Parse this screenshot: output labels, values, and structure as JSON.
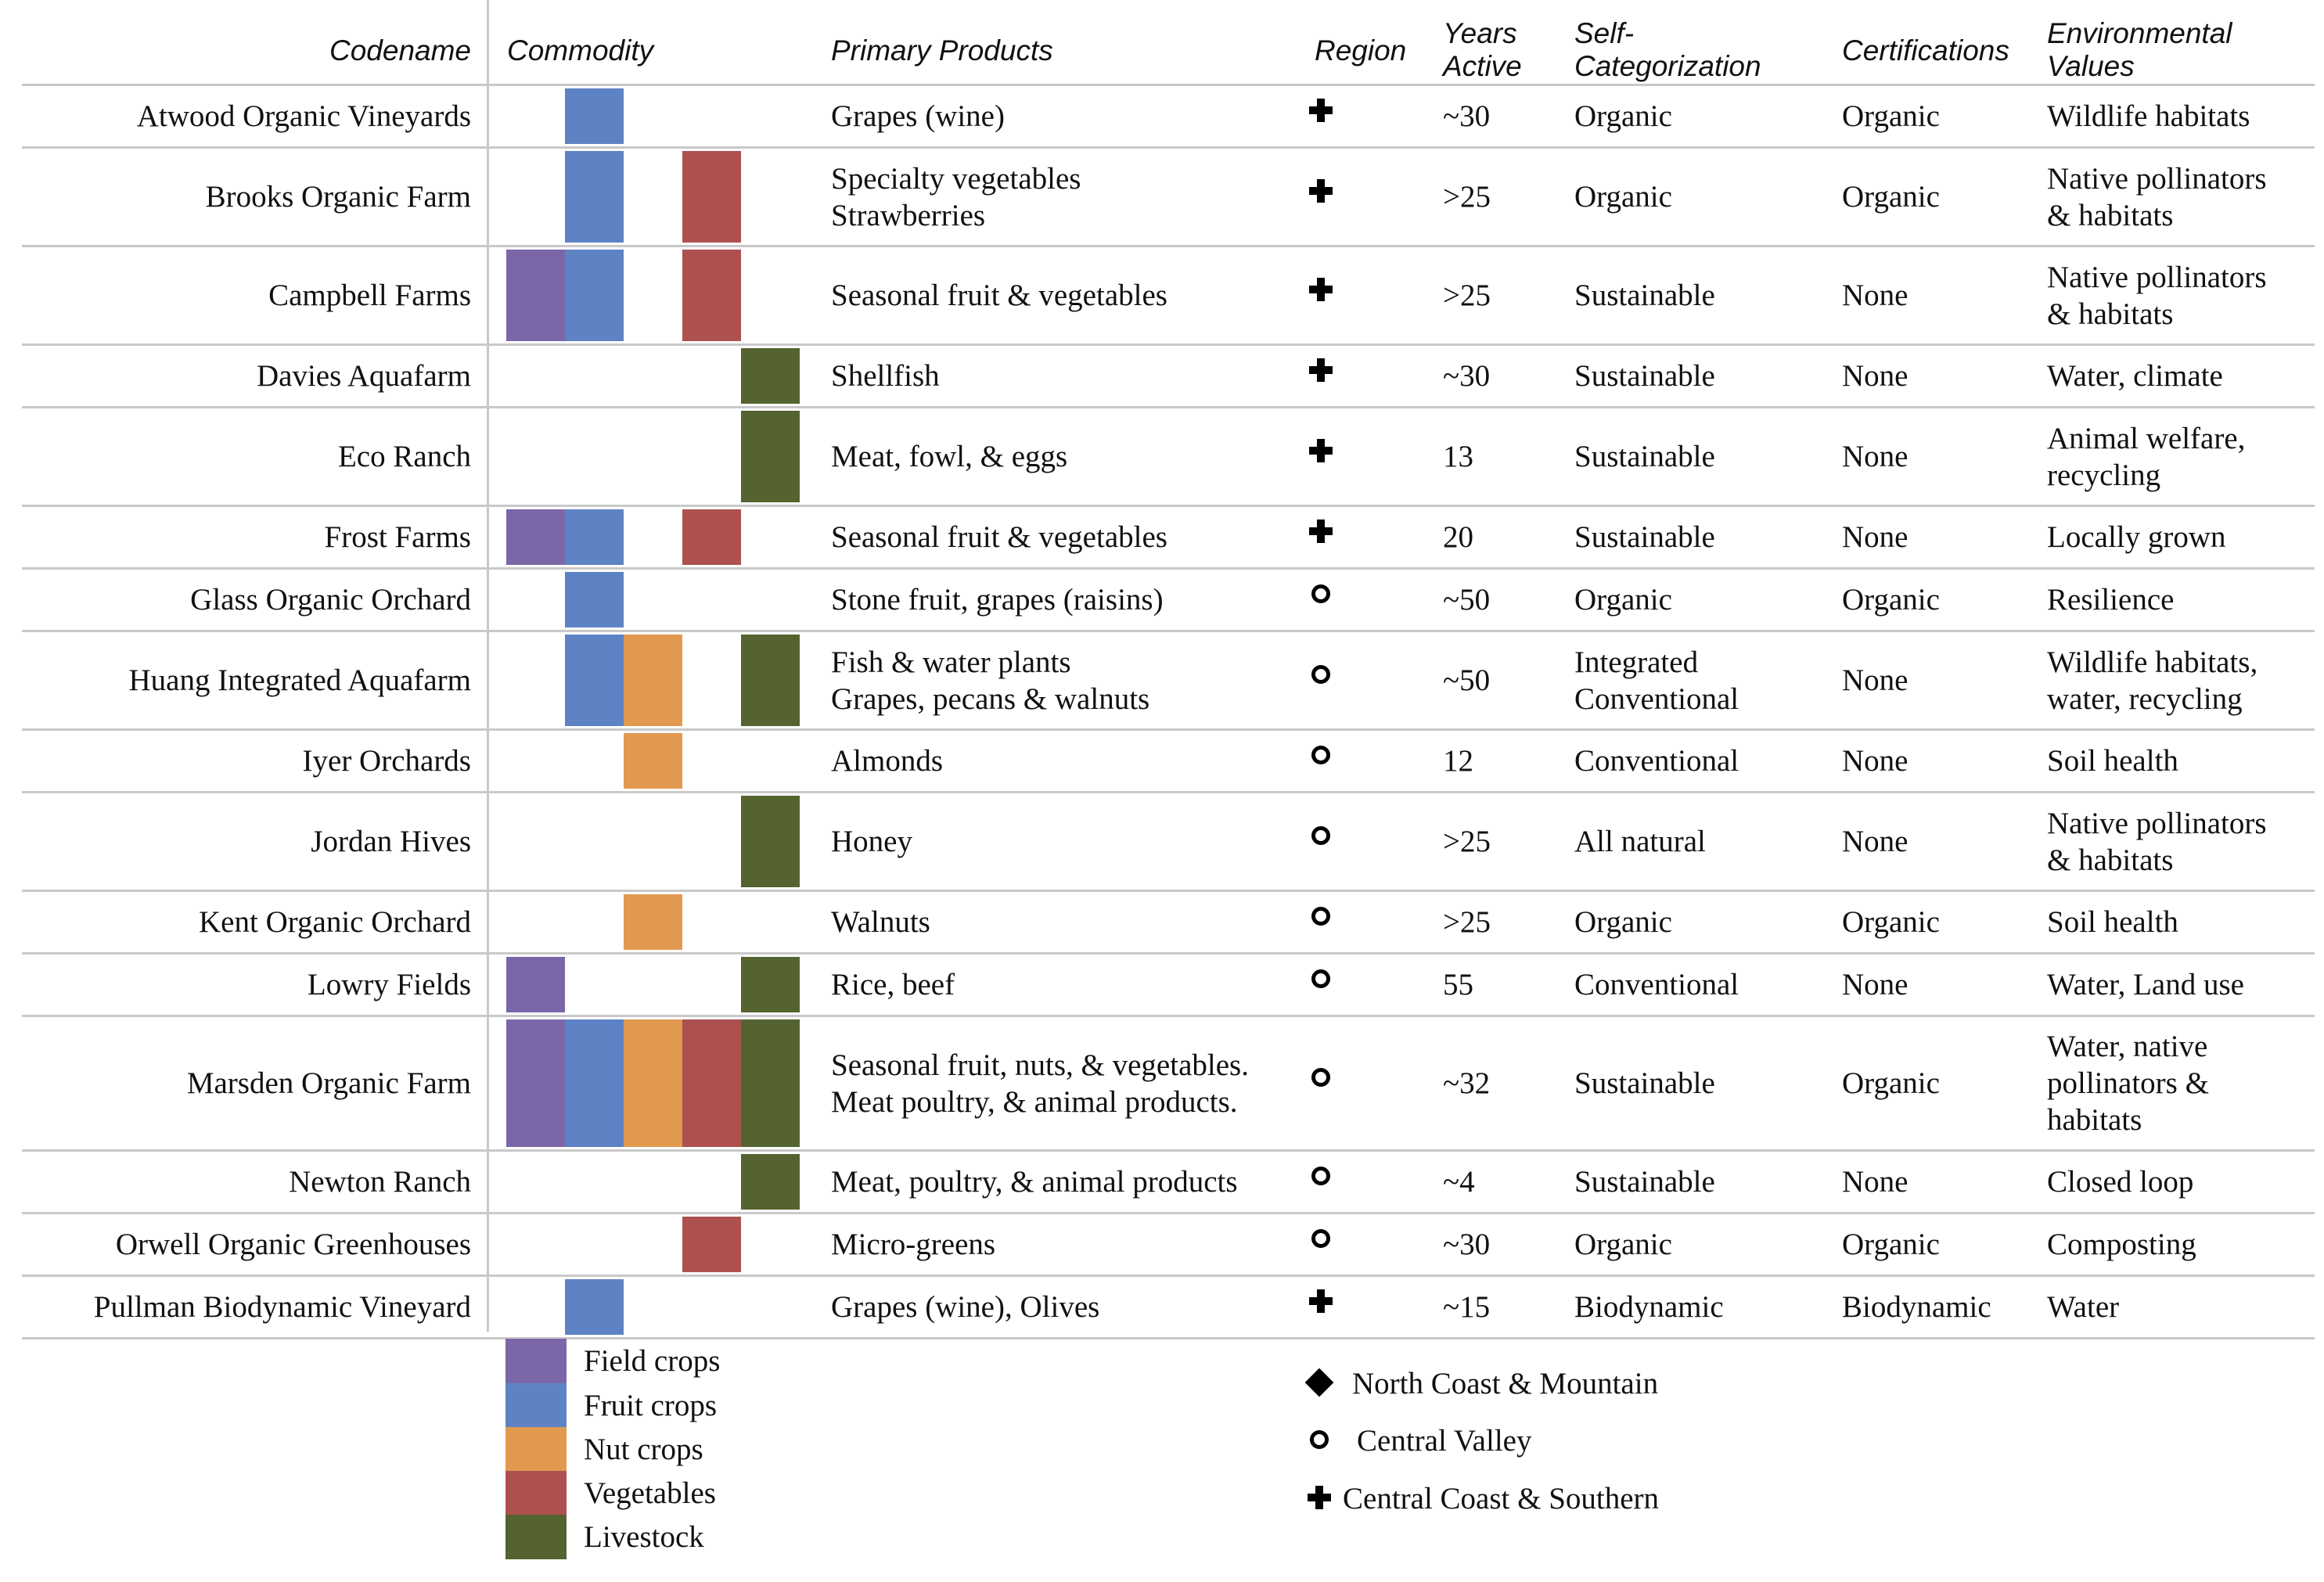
{
  "headers": {
    "codename": "Codename",
    "commodity": "Commodity",
    "primary_products": "Primary Products",
    "region": "Region",
    "years_active": [
      "Years",
      "Active"
    ],
    "self_categorization": [
      "Self-",
      "Categorization"
    ],
    "certifications": "Certifications",
    "environmental_values": [
      "Environmental",
      "Values"
    ]
  },
  "commodity_colors": {
    "field": "#7b67a8",
    "fruit": "#5e83c4",
    "nut": "#e1994f",
    "veg": "#ad5150",
    "livestock": "#556331"
  },
  "rows": [
    {
      "name": "Atwood Organic Vineyards",
      "commodities": [
        "fruit"
      ],
      "products": [
        "Grapes (wine)"
      ],
      "region": "cross",
      "years": "~30",
      "self_cat": [
        "Organic"
      ],
      "cert": "Organic",
      "env": [
        "Wildlife habitats"
      ]
    },
    {
      "name": "Brooks Organic Farm",
      "commodities": [
        "fruit",
        "veg"
      ],
      "products": [
        "Specialty vegetables",
        "Strawberries"
      ],
      "region": "cross",
      "years": ">25",
      "self_cat": [
        "Organic"
      ],
      "cert": "Organic",
      "env": [
        "Native pollinators",
        "& habitats"
      ]
    },
    {
      "name": "Campbell Farms",
      "commodities": [
        "field",
        "fruit",
        "veg"
      ],
      "products": [
        "Seasonal fruit & vegetables"
      ],
      "region": "cross",
      "years": ">25",
      "self_cat": [
        "Sustainable"
      ],
      "cert": "None",
      "env": [
        "Native pollinators",
        "& habitats"
      ]
    },
    {
      "name": "Davies Aquafarm",
      "commodities": [
        "livestock"
      ],
      "products": [
        "Shellfish"
      ],
      "region": "cross",
      "years": "~30",
      "self_cat": [
        "Sustainable"
      ],
      "cert": "None",
      "env": [
        "Water, climate"
      ]
    },
    {
      "name": "Eco Ranch",
      "commodities": [
        "livestock"
      ],
      "products": [
        "Meat, fowl, & eggs"
      ],
      "region": "cross",
      "years": "13",
      "self_cat": [
        "Sustainable"
      ],
      "cert": "None",
      "env": [
        "Animal welfare,",
        "recycling"
      ]
    },
    {
      "name": "Frost Farms",
      "commodities": [
        "field",
        "fruit",
        "veg"
      ],
      "products": [
        "Seasonal fruit & vegetables"
      ],
      "region": "cross",
      "years": "20",
      "self_cat": [
        "Sustainable"
      ],
      "cert": "None",
      "env": [
        "Locally grown"
      ]
    },
    {
      "name": "Glass Organic Orchard",
      "commodities": [
        "fruit"
      ],
      "products": [
        "Stone fruit, grapes (raisins)"
      ],
      "region": "circle",
      "years": "~50",
      "self_cat": [
        "Organic"
      ],
      "cert": "Organic",
      "env": [
        "Resilience"
      ]
    },
    {
      "name": "Huang Integrated Aquafarm",
      "commodities": [
        "fruit",
        "nut",
        "livestock"
      ],
      "products": [
        "Fish & water plants",
        "Grapes, pecans & walnuts"
      ],
      "region": "circle",
      "years": "~50",
      "self_cat": [
        "Integrated",
        "Conventional"
      ],
      "cert": "None",
      "env": [
        "Wildlife habitats,",
        "water, recycling"
      ]
    },
    {
      "name": "Iyer Orchards",
      "commodities": [
        "nut"
      ],
      "products": [
        "Almonds"
      ],
      "region": "circle",
      "years": "12",
      "self_cat": [
        "Conventional"
      ],
      "cert": "None",
      "env": [
        "Soil health"
      ]
    },
    {
      "name": "Jordan Hives",
      "commodities": [
        "livestock"
      ],
      "products": [
        "Honey"
      ],
      "region": "circle",
      "years": ">25",
      "self_cat": [
        "All natural"
      ],
      "cert": "None",
      "env": [
        "Native pollinators",
        "& habitats"
      ]
    },
    {
      "name": "Kent Organic Orchard",
      "commodities": [
        "nut"
      ],
      "products": [
        "Walnuts"
      ],
      "region": "circle",
      "years": ">25",
      "self_cat": [
        "Organic"
      ],
      "cert": "Organic",
      "env": [
        "Soil health"
      ]
    },
    {
      "name": "Lowry Fields",
      "commodities": [
        "field",
        "livestock"
      ],
      "products": [
        "Rice, beef"
      ],
      "region": "circle",
      "years": "55",
      "self_cat": [
        "Conventional"
      ],
      "cert": "None",
      "env": [
        "Water, Land use"
      ]
    },
    {
      "name": "Marsden Organic Farm",
      "commodities": [
        "field",
        "fruit",
        "nut",
        "veg",
        "livestock"
      ],
      "products": [
        "Seasonal fruit, nuts, & vegetables.",
        "Meat poultry, & animal products."
      ],
      "region": "circle",
      "years": "~32",
      "self_cat": [
        "Sustainable"
      ],
      "cert": "Organic",
      "env": [
        "Water, native",
        "pollinators &",
        "habitats"
      ]
    },
    {
      "name": "Newton Ranch",
      "commodities": [
        "livestock"
      ],
      "products": [
        "Meat, poultry, & animal products"
      ],
      "region": "circle",
      "years": "~4",
      "self_cat": [
        "Sustainable"
      ],
      "cert": "None",
      "env": [
        "Closed loop"
      ]
    },
    {
      "name": "Orwell Organic Greenhouses",
      "commodities": [
        "veg"
      ],
      "products": [
        "Micro-greens"
      ],
      "region": "circle",
      "years": "~30",
      "self_cat": [
        "Organic"
      ],
      "cert": "Organic",
      "env": [
        "Composting"
      ]
    },
    {
      "name": "Pullman Biodynamic Vineyard",
      "commodities": [
        "fruit"
      ],
      "products": [
        "Grapes (wine), Olives"
      ],
      "region": "cross",
      "years": "~15",
      "self_cat": [
        "Biodynamic"
      ],
      "cert": "Biodynamic",
      "env": [
        "Water"
      ]
    }
  ],
  "legend_commodity": [
    {
      "key": "field",
      "label": "Field crops"
    },
    {
      "key": "fruit",
      "label": "Fruit crops"
    },
    {
      "key": "nut",
      "label": "Nut crops"
    },
    {
      "key": "veg",
      "label": "Vegetables"
    },
    {
      "key": "livestock",
      "label": "Livestock"
    }
  ],
  "legend_region": [
    {
      "icon": "diamond",
      "label": "North Coast & Mountain"
    },
    {
      "icon": "circle",
      "label": "Central Valley"
    },
    {
      "icon": "cross",
      "label": "Central Coast & Southern"
    }
  ]
}
